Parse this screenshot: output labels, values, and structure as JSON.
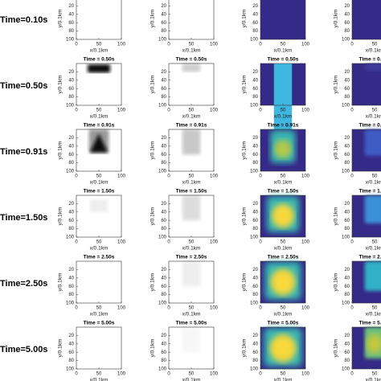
{
  "row_labels": [
    "Time=0.10s",
    "Time=0.50s",
    "Time=0.91s",
    "Time=1.50s",
    "Time=2.50s",
    "Time=5.00s"
  ],
  "panel_titles": [
    "Time = 0.50s",
    "Time = 0.91s",
    "Time = 1.50s",
    "Time = 2.50s",
    "Time = 5.00s"
  ],
  "axes": {
    "x_label": "x/0.1km",
    "y_label": "y/0.1km",
    "xticks": [
      0,
      50,
      100
    ],
    "yticks": [
      20,
      40,
      60,
      80,
      100
    ]
  }
}
